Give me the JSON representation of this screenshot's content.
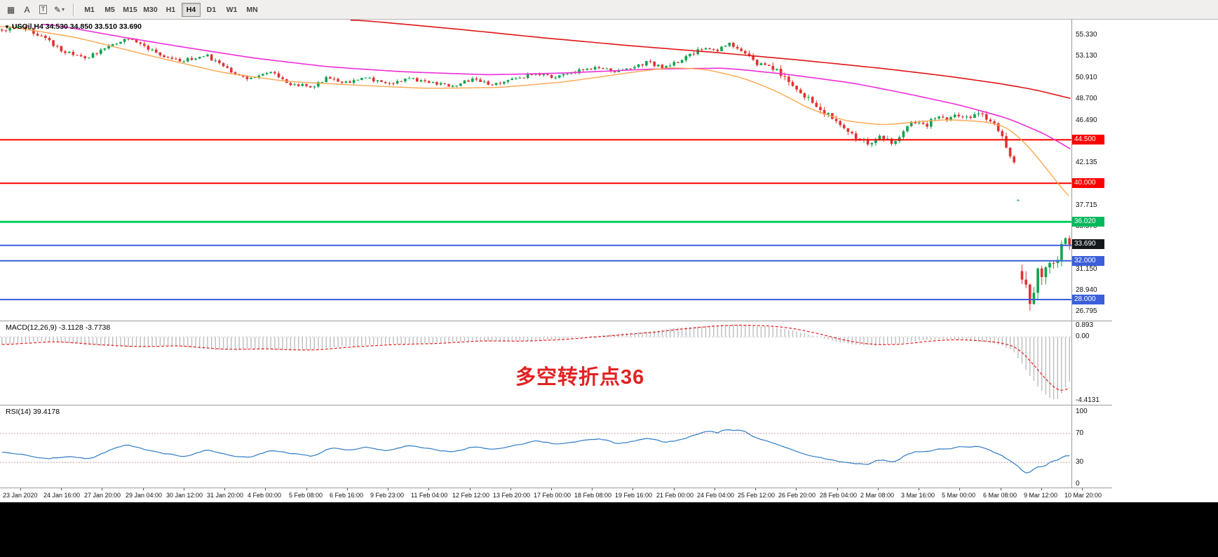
{
  "toolbar": {
    "left_tools": [
      {
        "id": "new-order-icon",
        "glyph": "▦",
        "boxed": false,
        "arrow": false
      },
      {
        "id": "cursor-tool-icon",
        "glyph": "A",
        "boxed": false,
        "arrow": false
      },
      {
        "id": "text-label-tool-icon",
        "glyph": "T",
        "boxed": true,
        "arrow": false
      },
      {
        "id": "draw-shapes-tool-icon",
        "glyph": "✎",
        "boxed": false,
        "arrow": true
      }
    ],
    "timeframes": [
      {
        "label": "M1",
        "active": false
      },
      {
        "label": "M5",
        "active": false
      },
      {
        "label": "M15",
        "active": false
      },
      {
        "label": "M30",
        "active": false
      },
      {
        "label": "H1",
        "active": false
      },
      {
        "label": "H4",
        "active": true
      },
      {
        "label": "D1",
        "active": false
      },
      {
        "label": "W1",
        "active": false
      },
      {
        "label": "MN",
        "active": false
      }
    ]
  },
  "main_chart": {
    "title": "USOil,H4 34.530 34.850 33.510 33.690",
    "price_axis": {
      "ticks": [
        {
          "label": "55.330",
          "price": 55.33
        },
        {
          "label": "53.130",
          "price": 53.13
        },
        {
          "label": "50.910",
          "price": 50.91
        },
        {
          "label": "48.700",
          "price": 48.7
        },
        {
          "label": "46.490",
          "price": 46.49
        },
        {
          "label": "42.135",
          "price": 42.135
        },
        {
          "label": "37.715",
          "price": 37.715
        },
        {
          "label": "35.570",
          "price": 35.57
        },
        {
          "label": "31.150",
          "price": 31.15
        },
        {
          "label": "28.940",
          "price": 28.94
        },
        {
          "label": "26.795",
          "price": 26.795
        }
      ],
      "badges": [
        {
          "label": "44.500",
          "price": 44.5,
          "color": "#ff0000"
        },
        {
          "label": "40.000",
          "price": 40.0,
          "color": "#ff0000"
        },
        {
          "label": "36.020",
          "price": 36.02,
          "color": "#00b85c"
        },
        {
          "label": "33.690",
          "price": 33.69,
          "color": "#15191d"
        },
        {
          "label": "32.000",
          "price": 32.0,
          "color": "#3a5fd9"
        },
        {
          "label": "28.000",
          "price": 28.0,
          "color": "#3a5fd9"
        }
      ]
    }
  },
  "macd_panel": {
    "label": "MACD(12,26,9) -3.1128 -3.7738",
    "axis": [
      {
        "label": "0.893",
        "value": 0.893
      },
      {
        "label": "0.00",
        "value": 0
      },
      {
        "label": "-4.4131",
        "value": -4.4131
      }
    ],
    "annotation": {
      "text": "多空转折点36",
      "color": "#e32222"
    }
  },
  "rsi_panel": {
    "label": "RSI(14) 39.4178",
    "axis": [
      {
        "label": "100",
        "value": 100
      },
      {
        "label": "70",
        "value": 70
      },
      {
        "label": "30",
        "value": 30
      },
      {
        "label": "0",
        "value": 0
      }
    ]
  },
  "time_axis": {
    "labels": [
      "23 Jan 2020",
      "24 Jan 16:00",
      "27 Jan 20:00",
      "29 Jan 04:00",
      "30 Jan 12:00",
      "31 Jan 20:00",
      "4 Feb 00:00",
      "5 Feb 08:00",
      "6 Feb 16:00",
      "9 Feb 23:00",
      "11 Feb 04:00",
      "12 Feb 12:00",
      "13 Feb 20:00",
      "17 Feb 00:00",
      "18 Feb 08:00",
      "19 Feb 16:00",
      "21 Feb 00:00",
      "24 Feb 04:00",
      "25 Feb 12:00",
      "26 Feb 20:00",
      "28 Feb 04:00",
      "2 Mar 08:00",
      "3 Mar 16:00",
      "5 Mar 00:00",
      "6 Mar 08:00",
      "9 Mar 12:00",
      "10 Mar 20:00"
    ]
  },
  "chart_data": {
    "type": "candlestick",
    "symbol": "USOil",
    "timeframe": "H4",
    "current_ohlc": {
      "open": 34.53,
      "high": 34.85,
      "low": 33.51,
      "close": 33.69
    },
    "bars": 271,
    "price_range_top": 56.9,
    "price_range_bottom": 25.83,
    "colors": {
      "up": "#0ca44c",
      "down": "#e03232"
    },
    "price_path": [
      [
        0,
        55.8
      ],
      [
        0.02,
        56.1
      ],
      [
        0.04,
        54.9
      ],
      [
        0.06,
        53.5
      ],
      [
        0.08,
        52.9
      ],
      [
        0.1,
        54.2
      ],
      [
        0.115,
        55.0
      ],
      [
        0.13,
        54.4
      ],
      [
        0.15,
        53.2
      ],
      [
        0.17,
        52.6
      ],
      [
        0.19,
        53.3
      ],
      [
        0.21,
        51.9
      ],
      [
        0.23,
        50.7
      ],
      [
        0.25,
        51.6
      ],
      [
        0.27,
        50.3
      ],
      [
        0.29,
        49.9
      ],
      [
        0.305,
        51.0
      ],
      [
        0.32,
        50.4
      ],
      [
        0.34,
        50.9
      ],
      [
        0.36,
        50.2
      ],
      [
        0.38,
        50.9
      ],
      [
        0.4,
        50.4
      ],
      [
        0.42,
        50.0
      ],
      [
        0.44,
        50.7
      ],
      [
        0.46,
        50.1
      ],
      [
        0.48,
        50.8
      ],
      [
        0.5,
        51.3
      ],
      [
        0.52,
        50.9
      ],
      [
        0.54,
        51.6
      ],
      [
        0.56,
        52.1
      ],
      [
        0.575,
        51.5
      ],
      [
        0.59,
        52.0
      ],
      [
        0.605,
        52.5
      ],
      [
        0.62,
        51.9
      ],
      [
        0.635,
        52.7
      ],
      [
        0.65,
        53.6
      ],
      [
        0.66,
        54.2
      ],
      [
        0.67,
        53.7
      ],
      [
        0.68,
        54.5
      ],
      [
        0.69,
        53.9
      ],
      [
        0.705,
        52.5
      ],
      [
        0.72,
        52.0
      ],
      [
        0.735,
        50.8
      ],
      [
        0.75,
        49.3
      ],
      [
        0.765,
        47.9
      ],
      [
        0.78,
        46.5
      ],
      [
        0.795,
        45.2
      ],
      [
        0.805,
        44.5
      ],
      [
        0.815,
        44.1
      ],
      [
        0.825,
        44.9
      ],
      [
        0.835,
        44.0
      ],
      [
        0.845,
        45.7
      ],
      [
        0.855,
        46.4
      ],
      [
        0.865,
        45.9
      ],
      [
        0.875,
        46.9
      ],
      [
        0.885,
        46.5
      ],
      [
        0.895,
        47.2
      ],
      [
        0.905,
        46.8
      ],
      [
        0.915,
        47.3
      ],
      [
        0.925,
        46.4
      ],
      [
        0.93,
        45.9
      ],
      [
        0.936,
        44.8
      ],
      [
        0.942,
        43.8
      ],
      [
        0.947,
        42.4
      ],
      [
        0.951,
        41.4
      ],
      [
        0.9535,
        32.3
      ],
      [
        0.957,
        30.0
      ],
      [
        0.96,
        28.3
      ],
      [
        0.9635,
        27.6
      ],
      [
        0.967,
        29.3
      ],
      [
        0.971,
        30.9
      ],
      [
        0.975,
        29.9
      ],
      [
        0.979,
        31.5
      ],
      [
        0.983,
        32.4
      ],
      [
        0.987,
        31.9
      ],
      [
        0.991,
        33.2
      ],
      [
        0.995,
        34.3
      ],
      [
        0.998,
        34.0
      ],
      [
        1,
        33.69
      ]
    ],
    "volatility_path": [
      [
        0,
        0.45
      ],
      [
        0.3,
        0.4
      ],
      [
        0.5,
        0.38
      ],
      [
        0.65,
        0.45
      ],
      [
        0.7,
        0.5
      ],
      [
        0.73,
        0.75
      ],
      [
        0.8,
        0.65
      ],
      [
        0.87,
        0.5
      ],
      [
        0.93,
        0.6
      ],
      [
        0.945,
        0.9
      ],
      [
        0.951,
        1.0
      ],
      [
        0.9535,
        2.2
      ],
      [
        0.96,
        1.8
      ],
      [
        0.97,
        1.5
      ],
      [
        1,
        1.2
      ]
    ],
    "moving_averages": [
      {
        "name": "ma-slow-red",
        "color": "#e01515",
        "width": 1.6,
        "path": [
          [
            0.327,
            56.85
          ],
          [
            0.42,
            55.9
          ],
          [
            0.5,
            55.0
          ],
          [
            0.58,
            54.2
          ],
          [
            0.66,
            53.5
          ],
          [
            0.74,
            52.7
          ],
          [
            0.82,
            51.8
          ],
          [
            0.88,
            51.0
          ],
          [
            0.93,
            50.2
          ],
          [
            0.96,
            49.6
          ],
          [
            1,
            48.5
          ]
        ]
      },
      {
        "name": "ma-mid-magenta",
        "color": "#ee2fd8",
        "width": 1.6,
        "path": [
          [
            0.04,
            56.4
          ],
          [
            0.1,
            55.2
          ],
          [
            0.16,
            54.1
          ],
          [
            0.23,
            52.9
          ],
          [
            0.3,
            52.0
          ],
          [
            0.37,
            51.5
          ],
          [
            0.45,
            51.2
          ],
          [
            0.52,
            51.4
          ],
          [
            0.6,
            51.8
          ],
          [
            0.67,
            51.9
          ],
          [
            0.73,
            51.2
          ],
          [
            0.79,
            50.3
          ],
          [
            0.84,
            49.2
          ],
          [
            0.89,
            48.0
          ],
          [
            0.935,
            46.6
          ],
          [
            0.97,
            44.9
          ],
          [
            1,
            42.9
          ]
        ]
      },
      {
        "name": "ma-fast-orange",
        "color": "#ffa64d",
        "width": 1.4,
        "path": [
          [
            0,
            56.2
          ],
          [
            0.065,
            55.0
          ],
          [
            0.13,
            53.2
          ],
          [
            0.2,
            51.4
          ],
          [
            0.26,
            50.5
          ],
          [
            0.33,
            50.1
          ],
          [
            0.39,
            49.8
          ],
          [
            0.46,
            49.9
          ],
          [
            0.52,
            50.5
          ],
          [
            0.59,
            51.6
          ],
          [
            0.62,
            52.0
          ],
          [
            0.655,
            51.7
          ],
          [
            0.69,
            50.7
          ],
          [
            0.72,
            49.3
          ],
          [
            0.75,
            47.5
          ],
          [
            0.785,
            46.3
          ],
          [
            0.82,
            46.0
          ],
          [
            0.85,
            46.4
          ],
          [
            0.88,
            46.6
          ],
          [
            0.916,
            46.3
          ],
          [
            0.936,
            45.6
          ],
          [
            0.955,
            43.4
          ],
          [
            0.975,
            40.5
          ],
          [
            0.99,
            38.4
          ],
          [
            1,
            37.3
          ]
        ]
      }
    ],
    "horizontal_lines": [
      {
        "price": 44.5,
        "label": "44.500",
        "color": "#ff0000",
        "width": 2
      },
      {
        "price": 40.0,
        "label": "40.000",
        "color": "#ff0000",
        "width": 2
      },
      {
        "price": 36.02,
        "label": "36.020",
        "color": "#00cf60",
        "width": 3
      },
      {
        "price": 33.6,
        "label": "",
        "color": "#3a5fd9",
        "width": 2
      },
      {
        "price": 32.0,
        "label": "32.000",
        "color": "#3a5fd9",
        "width": 2
      },
      {
        "price": 28.0,
        "label": "28.000",
        "color": "#3a5fd9",
        "width": 2
      }
    ],
    "macd": {
      "main_end": -3.1128,
      "signal_end": -3.7738,
      "hist_color": "#bdbdbd",
      "signal_color": "#e02020",
      "path": [
        [
          0,
          -0.5
        ],
        [
          0.04,
          -0.3
        ],
        [
          0.08,
          -0.55
        ],
        [
          0.12,
          -0.7
        ],
        [
          0.16,
          -0.6
        ],
        [
          0.2,
          -0.9
        ],
        [
          0.24,
          -0.8
        ],
        [
          0.28,
          -0.95
        ],
        [
          0.32,
          -0.65
        ],
        [
          0.36,
          -0.5
        ],
        [
          0.4,
          -0.45
        ],
        [
          0.44,
          -0.25
        ],
        [
          0.48,
          -0.3
        ],
        [
          0.52,
          -0.15
        ],
        [
          0.56,
          0.1
        ],
        [
          0.6,
          0.35
        ],
        [
          0.63,
          0.6
        ],
        [
          0.66,
          0.8
        ],
        [
          0.69,
          0.85
        ],
        [
          0.72,
          0.7
        ],
        [
          0.74,
          0.45
        ],
        [
          0.76,
          0.1
        ],
        [
          0.78,
          -0.3
        ],
        [
          0.8,
          -0.55
        ],
        [
          0.82,
          -0.6
        ],
        [
          0.84,
          -0.45
        ],
        [
          0.86,
          -0.25
        ],
        [
          0.88,
          -0.15
        ],
        [
          0.9,
          -0.2
        ],
        [
          0.92,
          -0.35
        ],
        [
          0.935,
          -0.55
        ],
        [
          0.947,
          -0.95
        ],
        [
          0.955,
          -1.8
        ],
        [
          0.963,
          -2.7
        ],
        [
          0.972,
          -3.6
        ],
        [
          0.98,
          -4.15
        ],
        [
          0.988,
          -4.4
        ],
        [
          1,
          -3.1128
        ]
      ]
    },
    "rsi": {
      "value": 39.4178,
      "color": "#2e7bc4",
      "levels": [
        70,
        30
      ],
      "level_color": "#d49a9a",
      "path": [
        [
          0,
          45
        ],
        [
          0.02,
          40
        ],
        [
          0.04,
          35
        ],
        [
          0.06,
          38
        ],
        [
          0.08,
          34
        ],
        [
          0.1,
          48
        ],
        [
          0.115,
          55
        ],
        [
          0.13,
          48
        ],
        [
          0.15,
          42
        ],
        [
          0.17,
          38
        ],
        [
          0.19,
          48
        ],
        [
          0.21,
          40
        ],
        [
          0.23,
          36
        ],
        [
          0.25,
          48
        ],
        [
          0.27,
          42
        ],
        [
          0.29,
          38
        ],
        [
          0.305,
          52
        ],
        [
          0.32,
          46
        ],
        [
          0.34,
          52
        ],
        [
          0.36,
          45
        ],
        [
          0.38,
          55
        ],
        [
          0.4,
          48
        ],
        [
          0.42,
          44
        ],
        [
          0.44,
          53
        ],
        [
          0.46,
          47
        ],
        [
          0.48,
          55
        ],
        [
          0.5,
          60
        ],
        [
          0.52,
          54
        ],
        [
          0.54,
          60
        ],
        [
          0.56,
          63
        ],
        [
          0.575,
          55
        ],
        [
          0.59,
          60
        ],
        [
          0.605,
          64
        ],
        [
          0.62,
          57
        ],
        [
          0.635,
          62
        ],
        [
          0.65,
          70
        ],
        [
          0.66,
          75
        ],
        [
          0.67,
          70
        ],
        [
          0.675,
          78
        ],
        [
          0.685,
          74
        ],
        [
          0.69,
          77
        ],
        [
          0.705,
          62
        ],
        [
          0.72,
          57
        ],
        [
          0.735,
          48
        ],
        [
          0.75,
          40
        ],
        [
          0.765,
          36
        ],
        [
          0.78,
          31
        ],
        [
          0.795,
          28
        ],
        [
          0.81,
          27
        ],
        [
          0.82,
          35
        ],
        [
          0.835,
          30
        ],
        [
          0.845,
          42
        ],
        [
          0.855,
          46
        ],
        [
          0.865,
          44
        ],
        [
          0.875,
          50
        ],
        [
          0.885,
          48
        ],
        [
          0.895,
          53
        ],
        [
          0.905,
          50
        ],
        [
          0.915,
          53
        ],
        [
          0.925,
          46
        ],
        [
          0.93,
          42
        ],
        [
          0.936,
          37
        ],
        [
          0.942,
          32
        ],
        [
          0.947,
          27
        ],
        [
          0.951,
          22
        ],
        [
          0.9535,
          17
        ],
        [
          0.957,
          14
        ],
        [
          0.96,
          13
        ],
        [
          0.9635,
          19
        ],
        [
          0.967,
          25
        ],
        [
          0.971,
          27
        ],
        [
          0.975,
          23
        ],
        [
          0.979,
          30
        ],
        [
          0.983,
          34
        ],
        [
          0.987,
          33
        ],
        [
          0.991,
          37
        ],
        [
          0.995,
          41
        ],
        [
          1,
          39.4
        ]
      ]
    }
  }
}
